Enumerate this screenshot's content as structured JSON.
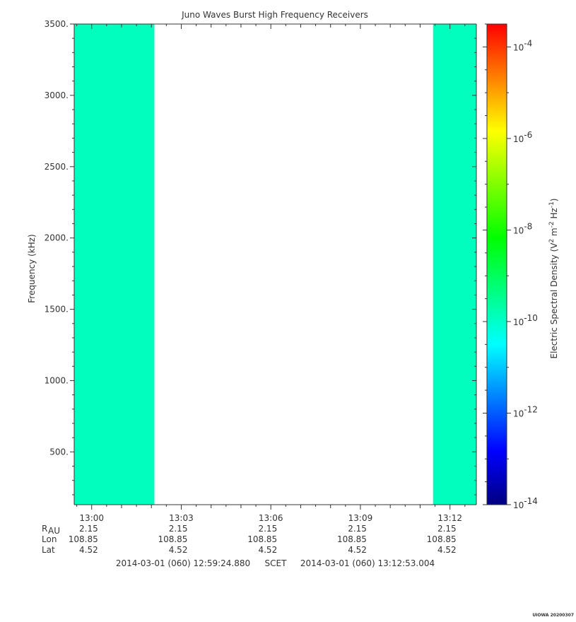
{
  "chart_data": {
    "type": "heatmap",
    "title": "Juno Waves Burst High Frequency Receivers",
    "ylabel": "Frequency (kHz)",
    "ylim": [
      130,
      3500
    ],
    "yticks": [
      500,
      1000,
      1500,
      2000,
      2500,
      3000,
      3500
    ],
    "ytick_labels": [
      "500.",
      "1000.",
      "1500.",
      "2000.",
      "2500.",
      "3000.",
      "3500."
    ],
    "xlim": [
      "12:59:24.880",
      "13:12:53.004"
    ],
    "xticks": [
      "13:00",
      "13:03",
      "13:06",
      "13:09",
      "13:12"
    ],
    "data_intervals": [
      {
        "start": "12:59:24.880",
        "end": "13:02:06"
      },
      {
        "start": "13:11:26",
        "end": "13:12:53.004"
      }
    ],
    "frequency_profile": [
      {
        "freq_khz": 130,
        "log10_density": -9.9
      },
      {
        "freq_khz": 300,
        "log10_density": -9.7
      },
      {
        "freq_khz": 500,
        "log10_density": -9.8
      },
      {
        "freq_khz": 700,
        "log10_density": -9.6
      },
      {
        "freq_khz": 850,
        "log10_density": -9.9
      },
      {
        "freq_khz": 1000,
        "log10_density": -10.4
      },
      {
        "freq_khz": 1200,
        "log10_density": -10.1
      },
      {
        "freq_khz": 1500,
        "log10_density": -9.9
      },
      {
        "freq_khz": 1800,
        "log10_density": -9.7
      },
      {
        "freq_khz": 2100,
        "log10_density": -10.1
      },
      {
        "freq_khz": 2500,
        "log10_density": -10.2
      },
      {
        "freq_khz": 3000,
        "log10_density": -10.3
      },
      {
        "freq_khz": 3500,
        "log10_density": -10.3
      }
    ],
    "colorbar": {
      "label": "Electric Spectral Density (V",
      "label_sup1": "2",
      "label_mid": " m",
      "label_sup2": "-2",
      "label_mid2": " Hz",
      "label_sup3": "-1",
      "label_end": ")",
      "range_log10": [
        -14,
        -3.5
      ],
      "tick_base": "10",
      "tick_exponents": [
        "-4",
        "-6",
        "-8",
        "-10",
        "-12",
        "-14"
      ],
      "colors": [
        "#000080",
        "#0000ff",
        "#0080ff",
        "#00ffff",
        "#00ff80",
        "#00ff00",
        "#80ff00",
        "#ffff00",
        "#ff8000",
        "#ff0000"
      ]
    },
    "ephemeris": {
      "row_labels": [
        "R",
        "Lon",
        "Lat"
      ],
      "r_subscript": "AU",
      "values": [
        [
          "2.15",
          "2.15",
          "2.15",
          "2.15",
          "2.15"
        ],
        [
          "108.85",
          "108.85",
          "108.85",
          "108.85",
          "108.85"
        ],
        [
          "4.52",
          "4.52",
          "4.52",
          "4.52",
          "4.52"
        ]
      ]
    },
    "time_range": {
      "start": "2014-03-01 (060) 12:59:24.880",
      "scet": "SCET",
      "end": "2014-03-01 (060) 13:12:53.004"
    },
    "credit": "UIOWA 20200307"
  }
}
